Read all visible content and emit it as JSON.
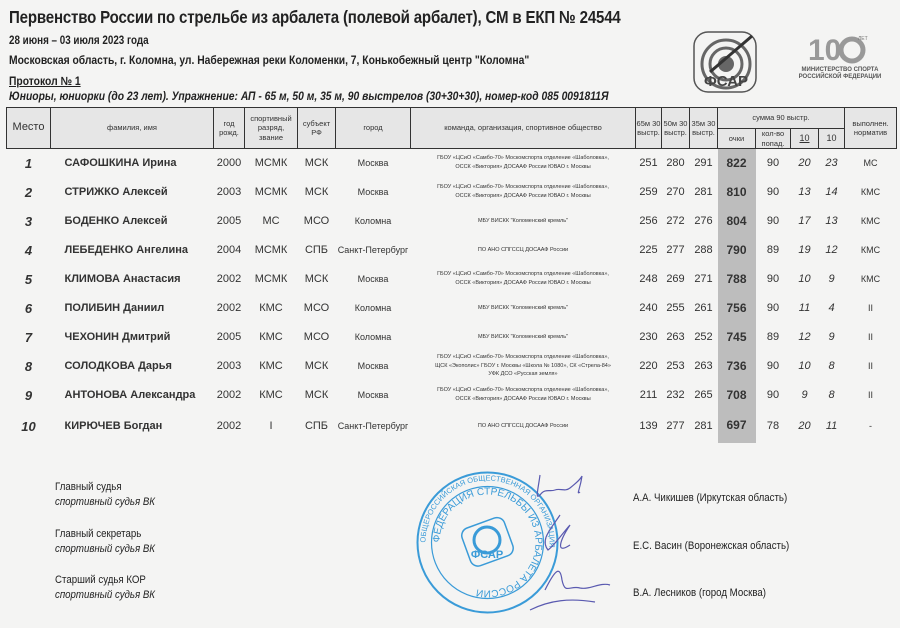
{
  "header": {
    "title": "Первенство России по стрельбе из арбалета (полевой арбалет), СМ в ЕКП № 24544",
    "dates": "28 июня – 03 июля 2023 года",
    "venue": "Московская область, г. Коломна, ул. Набережная реки Коломенки, 7, Конькобежный центр \"Коломна\"",
    "protocol": "Протокол № 1",
    "exercise": "Юниоры, юниорки (до 23 лет). Упражнение: АП - 65 м, 50 м, 35 м, 90 выстрелов (30+30+30), номер-код 085 0091811Я"
  },
  "logos": {
    "fsar": "ФСАР",
    "ministry_100": "100 лет",
    "ministry_text": "МИНИСТЕРСТВО СПОРТА РОССИЙСКОЙ ФЕДЕРАЦИИ"
  },
  "table": {
    "columns": {
      "place": "Место",
      "name": "фамилия, имя",
      "year": "год рожд.",
      "rank": "спортивный разряд, звание",
      "region": "субъект РФ",
      "city": "город",
      "team": "команда, организация, спортивное общество",
      "d65": "65м 30 выстр.",
      "d50": "50м 30 выстр.",
      "d35": "35м 30 выстр.",
      "sum_group": "сумма 90 выстр.",
      "points": "очки",
      "hits": "кол-во попад.",
      "tens_inner": "10",
      "tens": "10",
      "norm": "выполнен. норматив"
    },
    "rows": [
      {
        "place": "1",
        "name": "САФОШКИНА Ирина",
        "year": "2000",
        "rank": "МСМК",
        "region": "МСК",
        "city": "Москва",
        "team": [
          "ГБОУ «ЦСиО «Самбо-70» Москомспорта отделение «Шаболовка»,",
          "ОССК «Виктория» ДОСААФ России ЮВАО г. Москвы"
        ],
        "d65": "251",
        "d50": "280",
        "d35": "291",
        "points": "822",
        "hits": "90",
        "x10": "20",
        "t10": "23",
        "norm": "МС"
      },
      {
        "place": "2",
        "name": "СТРИЖКО Алексей",
        "year": "2003",
        "rank": "МСМК",
        "region": "МСК",
        "city": "Москва",
        "team": [
          "ГБОУ «ЦСиО «Самбо-70» Москомспорта отделение «Шаболовка»,",
          "ОССК «Виктория» ДОСААФ России ЮВАО г. Москвы"
        ],
        "d65": "259",
        "d50": "270",
        "d35": "281",
        "points": "810",
        "hits": "90",
        "x10": "13",
        "t10": "14",
        "norm": "КМС"
      },
      {
        "place": "3",
        "name": "БОДЕНКО Алексей",
        "year": "2005",
        "rank": "МС",
        "region": "МСО",
        "city": "Коломна",
        "team": [
          "МБУ ВИСКК \"Коломенский кремль\""
        ],
        "d65": "256",
        "d50": "272",
        "d35": "276",
        "points": "804",
        "hits": "90",
        "x10": "17",
        "t10": "13",
        "norm": "КМС"
      },
      {
        "place": "4",
        "name": "ЛЕБЕДЕНКО Ангелина",
        "year": "2004",
        "rank": "МСМК",
        "region": "СПБ",
        "city": "Санкт-Петербург",
        "team": [
          "ПО АНО СПГССЦ ДОСААФ России"
        ],
        "d65": "225",
        "d50": "277",
        "d35": "288",
        "points": "790",
        "hits": "89",
        "x10": "19",
        "t10": "12",
        "norm": "КМС"
      },
      {
        "place": "5",
        "name": "КЛИМОВА Анастасия",
        "year": "2002",
        "rank": "МСМК",
        "region": "МСК",
        "city": "Москва",
        "team": [
          "ГБОУ «ЦСиО «Самбо-70» Москомспорта отделение «Шаболовка»,",
          "ОССК «Виктория» ДОСААФ России ЮВАО г. Москвы"
        ],
        "d65": "248",
        "d50": "269",
        "d35": "271",
        "points": "788",
        "hits": "90",
        "x10": "10",
        "t10": "9",
        "norm": "КМС"
      },
      {
        "place": "6",
        "name": "ПОЛИБИН Даниил",
        "year": "2002",
        "rank": "КМС",
        "region": "МСО",
        "city": "Коломна",
        "team": [
          "МБУ ВИСКК \"Коломенский кремль\""
        ],
        "d65": "240",
        "d50": "255",
        "d35": "261",
        "points": "756",
        "hits": "90",
        "x10": "11",
        "t10": "4",
        "norm": "II"
      },
      {
        "place": "7",
        "name": "ЧЕХОНИН Дмитрий",
        "year": "2005",
        "rank": "КМС",
        "region": "МСО",
        "city": "Коломна",
        "team": [
          "МБУ ВИСКК \"Коломенский кремль\""
        ],
        "d65": "230",
        "d50": "263",
        "d35": "252",
        "points": "745",
        "hits": "89",
        "x10": "12",
        "t10": "9",
        "norm": "II"
      },
      {
        "place": "8",
        "name": "СОЛОДКОВА Дарья",
        "year": "2003",
        "rank": "КМС",
        "region": "МСК",
        "city": "Москва",
        "team": [
          "ГБОУ «ЦСиО «Самбо-70» Москомспорта отделение «Шаболовка»,",
          "ЩСК «Экополис» ГБОУ г. Москвы «Школа № 1080», СК «Стрела-84»",
          "УФК ДСО «Русская земля»"
        ],
        "d65": "220",
        "d50": "253",
        "d35": "263",
        "points": "736",
        "hits": "90",
        "x10": "10",
        "t10": "8",
        "norm": "II"
      },
      {
        "place": "9",
        "name": "АНТОНОВА Александра",
        "year": "2002",
        "rank": "КМС",
        "region": "МСК",
        "city": "Москва",
        "team": [
          "ГБОУ «ЦСиО «Самбо-70» Москомспорта отделение «Шаболовка»,",
          "ОССК «Виктория» ДОСААФ России ЮВАО г. Москвы"
        ],
        "d65": "211",
        "d50": "232",
        "d35": "265",
        "points": "708",
        "hits": "90",
        "x10": "9",
        "t10": "8",
        "norm": "II"
      },
      {
        "place": "10",
        "name": "КИРЮЧЕВ Богдан",
        "year": "2002",
        "rank": "I",
        "region": "СПБ",
        "city": "Санкт-Петербург",
        "team": [
          "ПО АНО СПГССЦ ДОСААФ России"
        ],
        "d65": "139",
        "d50": "277",
        "d35": "281",
        "points": "697",
        "hits": "78",
        "x10": "20",
        "t10": "11",
        "norm": "-"
      }
    ]
  },
  "officials": [
    {
      "role": "Главный судья",
      "category": "спортивный судья ВК",
      "name": "А.А. Чикишев (Иркутская область)"
    },
    {
      "role": "Главный секретарь",
      "category": "спортивный судья ВК",
      "name": "Е.С. Васин (Воронежская область)"
    },
    {
      "role": "Старший судья КОР",
      "category": "спортивный судья ВК",
      "name": "В.А. Лесников (город Москва)"
    }
  ],
  "stamp": {
    "outer": "ОБЩЕРОССИЙСКАЯ ОБЩЕСТВЕННАЯ ОРГАНИЗАЦИЯ",
    "inner": "ФЕДЕРАЦИЯ СТРЕЛЬБЫ ИЗ АРБАЛЕТА РОССИИ",
    "center": "ФСАР"
  },
  "colors": {
    "stamp": "#3a9bd8",
    "signature": "#5a5ab0",
    "score_column": "#bdbdbd",
    "header_fill": "#e6e6e6"
  }
}
